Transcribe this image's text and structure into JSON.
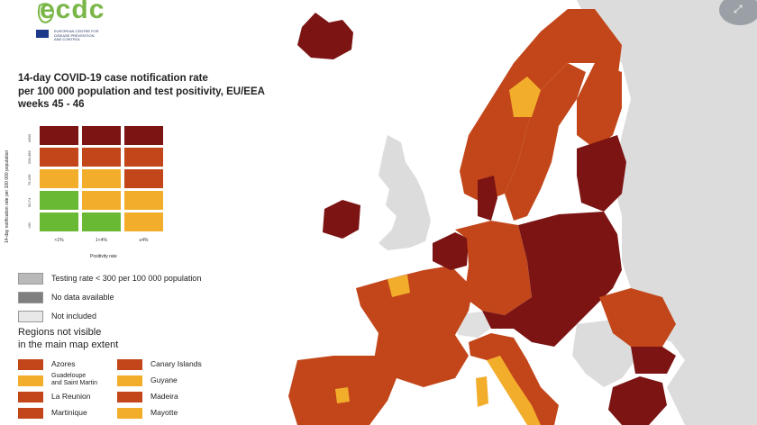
{
  "branding": {
    "logo_text": "ecdc",
    "org_line1": "EUROPEAN CENTRE FOR",
    "org_line2": "DISEASE PREVENTION",
    "org_line3": "AND CONTROL"
  },
  "title": {
    "line1": "14-day COVID-19 case notification rate",
    "line2": "per 100 000 population and test positivity, EU/EEA",
    "line3": "weeks 45 - 46"
  },
  "matrix": {
    "y_axis_label": "14-day notification rate per 100 000 population",
    "x_axis_label": "Positivity rate",
    "row_ticks": [
      "≥500",
      "200-499",
      "75-199",
      "50-74",
      "<50"
    ],
    "col_ticks": [
      "<1%",
      "1<4%",
      "≥4%"
    ],
    "rows": [
      [
        "#7b1413",
        "#7b1413",
        "#7b1413"
      ],
      [
        "#c2461a",
        "#c2461a",
        "#c2461a"
      ],
      [
        "#f2ad2b",
        "#f2ad2b",
        "#c2461a"
      ],
      [
        "#6ab934",
        "#f2ad2b",
        "#f2ad2b"
      ],
      [
        "#6ab934",
        "#6ab934",
        "#f2ad2b"
      ]
    ]
  },
  "legend": {
    "items": [
      {
        "label": "Testing rate < 300 per 100 000 population",
        "color": "#b9b9b9"
      },
      {
        "label": "No data available",
        "color": "#7f7f7f"
      },
      {
        "label": "Not included",
        "color": "#e8e8e8"
      }
    ]
  },
  "regions": {
    "title_line1": "Regions not visible",
    "title_line2": "in the main map extent",
    "left": [
      {
        "label": "Azores",
        "color": "#c2461a"
      },
      {
        "label": "Guadeloupe\nand Saint Martin",
        "color": "#f2ad2b"
      },
      {
        "label": "La Reunion",
        "color": "#c2461a"
      },
      {
        "label": "Martinique",
        "color": "#c2461a"
      }
    ],
    "right": [
      {
        "label": "Canary Islands",
        "color": "#c2461a"
      },
      {
        "label": "Guyane",
        "color": "#f2ad2b"
      },
      {
        "label": "Madeira",
        "color": "#c2461a"
      },
      {
        "label": "Mayotte",
        "color": "#f2ad2b"
      }
    ]
  },
  "colors": {
    "dark_red": "#7b1413",
    "red": "#c2461a",
    "orange": "#f2ad2b",
    "green": "#6ab934",
    "sea": "#ffffff",
    "non_eu": "#dcdcdc"
  },
  "icons": {
    "corner": "expand-icon"
  }
}
